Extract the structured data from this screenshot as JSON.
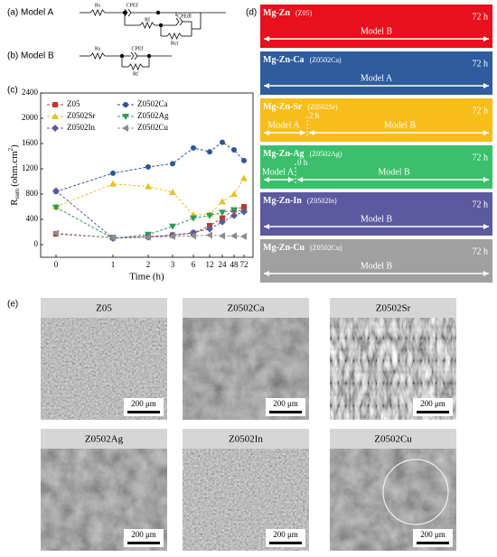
{
  "panel_a": {
    "label": "(a) Model A",
    "components": [
      "Rs",
      "CPEf",
      "Rf",
      "CPEdl",
      "Rct"
    ]
  },
  "panel_b": {
    "label": "(b) Model B",
    "components": [
      "Rs",
      "CPEf",
      "Rf"
    ]
  },
  "chart_data": {
    "type": "line",
    "panel_label": "(c)",
    "x_label": "Time (h)",
    "y_label": {
      "main": "R",
      "sub": "sum",
      "unit": "(ohm.cm",
      "sup": "2",
      "end": ")"
    },
    "categories": [
      "0",
      "1",
      "2",
      "3",
      "6",
      "12",
      "24",
      "48",
      "72"
    ],
    "ylim": [
      -200,
      2400
    ],
    "yticks": [
      0,
      400,
      800,
      1200,
      1600,
      2000,
      2400
    ],
    "series": [
      {
        "name": "Z05",
        "color": "#c0392b",
        "marker": "square",
        "values": [
          170,
          110,
          130,
          150,
          180,
          300,
          420,
          550,
          600
        ]
      },
      {
        "name": "Z0502Ca",
        "color": "#2e5597",
        "marker": "circle",
        "values": [
          840,
          1130,
          1230,
          1280,
          1530,
          1470,
          1620,
          1500,
          1330
        ]
      },
      {
        "name": "Z0502Sr",
        "color": "#e6c229",
        "marker": "triangle",
        "values": [
          600,
          960,
          920,
          830,
          470,
          480,
          680,
          800,
          1050
        ]
      },
      {
        "name": "Z0502Ag",
        "color": "#2e9b57",
        "marker": "down",
        "values": [
          590,
          100,
          160,
          290,
          420,
          460,
          510,
          550,
          520
        ]
      },
      {
        "name": "Z0502In",
        "color": "#5b5aa0",
        "marker": "diamond",
        "values": [
          850,
          100,
          120,
          150,
          190,
          250,
          360,
          460,
          520
        ]
      },
      {
        "name": "Z0502Cu",
        "color": "#8c8c8c",
        "marker": "left",
        "values": [
          180,
          110,
          120,
          130,
          140,
          150,
          140,
          140,
          130
        ]
      }
    ]
  },
  "panel_d": {
    "label": "(d)",
    "rows": [
      {
        "alloy": "Mg-Zn",
        "code": "(Z05)",
        "color": "#e8101c",
        "time": "72 h",
        "segments": [
          "Model B"
        ]
      },
      {
        "alloy": "Mg-Zn-Ca",
        "code": "(Z0502Ca)",
        "color": "#2f5c9e",
        "time": "72 h",
        "segments": [
          "Model A"
        ]
      },
      {
        "alloy": "Mg-Zn-Sr",
        "code": "(Z0502Sr)",
        "color": "#f7bd1a",
        "time": "72 h",
        "switch": "2 h",
        "segments": [
          "Model A",
          "Model B"
        ]
      },
      {
        "alloy": "Mg-Zn-Ag",
        "code": "(Z0502Ag)",
        "color": "#3bbf6a",
        "time": "72 h",
        "switch": "0 h",
        "segments": [
          "Model A",
          "Model B"
        ]
      },
      {
        "alloy": "Mg-Zn-In",
        "code": "(Z0502In)",
        "color": "#5b5aa0",
        "time": "72 h",
        "segments": [
          "Model B"
        ]
      },
      {
        "alloy": "Mg-Zn-Cu",
        "code": "(Z0502Cu)",
        "color": "#a0a0a0",
        "time": "72 h",
        "segments": [
          "Model B"
        ]
      }
    ]
  },
  "panel_e": {
    "label": "(e)",
    "images": [
      {
        "title": "Z05",
        "scale": "200 μm"
      },
      {
        "title": "Z0502Ca",
        "scale": "200 μm"
      },
      {
        "title": "Z0502Sr",
        "scale": "200 μm"
      },
      {
        "title": "Z0502Ag",
        "scale": "200 μm"
      },
      {
        "title": "Z0502In",
        "scale": "200 μm"
      },
      {
        "title": "Z0502Cu",
        "scale": "200 μm"
      }
    ]
  }
}
